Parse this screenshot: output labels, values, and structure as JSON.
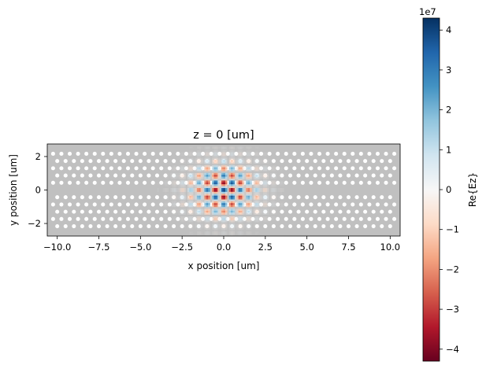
{
  "chart_data": {
    "type": "heatmap",
    "title": "z = 0 [um]",
    "xlabel": "x position [um]",
    "ylabel": "y position [um]",
    "xlim": [
      -10.6,
      10.6
    ],
    "ylim": [
      -2.75,
      2.75
    ],
    "xticks": [
      -10.0,
      -7.5,
      -5.0,
      -2.5,
      0.0,
      2.5,
      5.0,
      7.5,
      10.0
    ],
    "xtick_labels": [
      "−10.0",
      "−7.5",
      "−5.0",
      "−2.5",
      "0.0",
      "2.5",
      "5.0",
      "7.5",
      "10.0"
    ],
    "yticks": [
      -2,
      0,
      2
    ],
    "ytick_labels": [
      "−2",
      "0",
      "2"
    ],
    "background_color": "#c0c0c0",
    "holes": {
      "lattice_constant": 0.5,
      "x_extent": [
        -10.25,
        10.25
      ],
      "rows_y": [
        -2.165,
        -1.732,
        -1.299,
        -0.866,
        -0.433,
        0.433,
        0.866,
        1.299,
        1.732,
        2.165
      ],
      "radius": 0.12,
      "color": "#ffffff"
    },
    "field": {
      "name": "Re{Ez}",
      "center": [
        0,
        0
      ],
      "spread_x": 1.4,
      "spread_y": 1.1,
      "kx": 6.28,
      "ky": 7.25,
      "peak": 43000000
    },
    "colorbar": {
      "label": "Re{Ez}",
      "multiplier": "1e7",
      "range": [
        -4.3,
        4.3
      ],
      "ticks": [
        -4,
        -3,
        -2,
        -1,
        0,
        1,
        2,
        3,
        4
      ],
      "tick_labels": [
        "−4",
        "−3",
        "−2",
        "−1",
        "0",
        "1",
        "2",
        "3",
        "4"
      ],
      "colormap": "RdBu",
      "stops": [
        "#67001f",
        "#b2182b",
        "#d6604d",
        "#f4a582",
        "#fddbc7",
        "#f7f7f7",
        "#d1e5f0",
        "#92c5de",
        "#4393c3",
        "#2166ac",
        "#053061"
      ]
    }
  }
}
